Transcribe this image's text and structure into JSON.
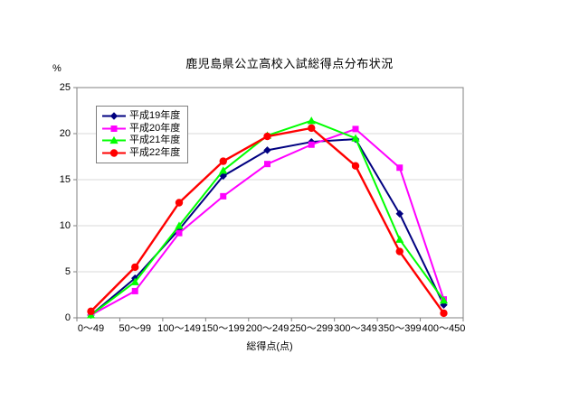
{
  "title": "鹿児島県公立高校入試総得点分布状況",
  "colors": {
    "background": "#FFFFFF",
    "grid": "#D9D9D9",
    "axis": "#808080",
    "text": "#000000"
  },
  "chart_data": {
    "type": "line",
    "title": "鹿児島県公立高校入試総得点分布状況",
    "xlabel": "総得点(点)",
    "ylabel": "%",
    "ylim": [
      0,
      25
    ],
    "yticks": [
      0,
      5,
      10,
      15,
      20,
      25
    ],
    "grid": true,
    "legend_position": "top-left-inside",
    "categories": [
      "0～49",
      "50～99",
      "100～149",
      "150～199",
      "200～249",
      "250～299",
      "300～349",
      "350～399",
      "400～450"
    ],
    "series": [
      {
        "name": "平成19年度",
        "color": "#000080",
        "marker": "diamond",
        "values": [
          0.3,
          4.3,
          9.6,
          15.4,
          18.2,
          19.1,
          19.4,
          11.3,
          1.4
        ]
      },
      {
        "name": "平成20年度",
        "color": "#FF00FF",
        "marker": "square",
        "values": [
          0.3,
          2.9,
          9.2,
          13.2,
          16.7,
          18.8,
          20.5,
          16.3,
          2.0
        ]
      },
      {
        "name": "平成21年度",
        "color": "#00FF00",
        "marker": "triangle",
        "values": [
          0.3,
          3.9,
          10.0,
          16.0,
          19.8,
          21.4,
          19.5,
          8.5,
          1.9
        ]
      },
      {
        "name": "平成22年度",
        "color": "#FF0000",
        "marker": "circle",
        "values": [
          0.7,
          5.5,
          12.5,
          17.0,
          19.7,
          20.6,
          16.5,
          7.2,
          0.5
        ]
      }
    ]
  }
}
